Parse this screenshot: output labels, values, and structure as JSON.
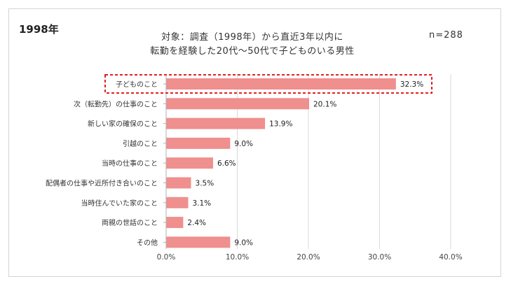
{
  "year_badge": "1998年",
  "title_line1": "対象：調査（1998年）から直近3年以内に",
  "title_line2": "転勤を経験した20代～50代で子どものいる男性",
  "sample_size": "n=288",
  "colors": {
    "bar": "#ef8f8e",
    "highlight_border": "#e02020",
    "grid": "#d9d9d9",
    "axis": "#b0b0b0"
  },
  "chart_data": {
    "type": "bar",
    "orientation": "horizontal",
    "categories": [
      "子どものこと",
      "次（転勤先）の仕事のこと",
      "新しい家の確保のこと",
      "引越のこと",
      "当時の仕事のこと",
      "配偶者の仕事や近所付き合いのこと",
      "当時住んでいた家のこと",
      "両親の世話のこと",
      "その他"
    ],
    "values": [
      32.3,
      20.1,
      13.9,
      9.0,
      6.6,
      3.5,
      3.1,
      2.4,
      9.0
    ],
    "value_labels": [
      "32.3%",
      "20.1%",
      "13.9%",
      "9.0%",
      "6.6%",
      "3.5%",
      "3.1%",
      "2.4%",
      "9.0%"
    ],
    "xlim": [
      0,
      40
    ],
    "xticks": [
      0,
      10,
      20,
      30,
      40
    ],
    "xtick_labels": [
      "0.0%",
      "10.0%",
      "20.0%",
      "30.0%",
      "40.0%"
    ],
    "grid": true,
    "highlighted_category": "子どものこと"
  }
}
